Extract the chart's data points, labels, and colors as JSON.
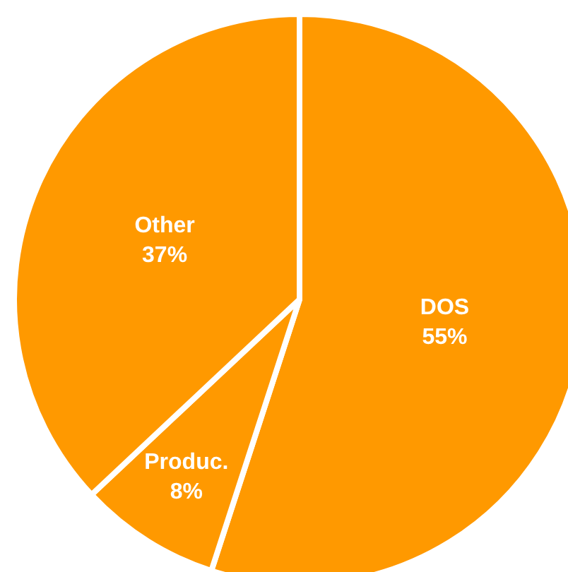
{
  "chart_data": {
    "type": "pie",
    "categories": [
      "DOS",
      "Produc.",
      "Other"
    ],
    "values": [
      55,
      8,
      37
    ],
    "colors": [
      "#ff9900",
      "#ff9900",
      "#ff9900"
    ],
    "value_labels": [
      "55%",
      "8%",
      "37%"
    ],
    "legend": false
  }
}
